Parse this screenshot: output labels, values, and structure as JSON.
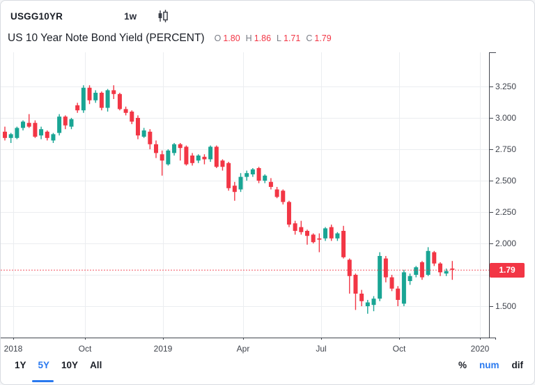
{
  "header": {
    "symbol": "USGG10YR",
    "interval": "1w",
    "chart_type_icon": "candlestick-icon",
    "title": "US 10 Year Note Bond Yield (PERCENT)",
    "ohlc": {
      "o_label": "O",
      "o": "1.80",
      "h_label": "H",
      "h": "1.86",
      "l_label": "L",
      "l": "1.71",
      "c_label": "C",
      "c": "1.79"
    }
  },
  "footer": {
    "ranges": [
      {
        "label": "1Y",
        "active": false
      },
      {
        "label": "5Y",
        "active": true
      },
      {
        "label": "10Y",
        "active": false
      },
      {
        "label": "All",
        "active": false
      }
    ],
    "modes": [
      {
        "label": "%",
        "active": false
      },
      {
        "label": "num",
        "active": true
      },
      {
        "label": "dif",
        "active": false
      }
    ]
  },
  "colors": {
    "up": "#19a594",
    "down": "#f23645",
    "accent_blue": "#2979ef",
    "grid": "#ebedf0",
    "axis": "#42464e",
    "price_line": "#f23645",
    "label_text": "#3f434c"
  },
  "chart_data": {
    "type": "candlestick",
    "series_name": "USGG10YR weekly",
    "ylabel": "PERCENT",
    "ylim": [
      1.25,
      3.52
    ],
    "grid": true,
    "y_ticks": [
      3.25,
      3.0,
      2.75,
      2.5,
      2.25,
      2.0,
      1.75,
      1.5
    ],
    "x_labels": [
      {
        "label": "2018",
        "week": 1.4
      },
      {
        "label": "Oct",
        "week": 13.2
      },
      {
        "label": "2019",
        "week": 26.2
      },
      {
        "label": "Apr",
        "week": 39.4
      },
      {
        "label": "Jul",
        "week": 52.3
      },
      {
        "label": "Oct",
        "week": 65.2
      },
      {
        "label": "2020",
        "week": 78.6
      }
    ],
    "current_price": 1.79,
    "current_price_label": "1.79",
    "candles_ohlc": [
      [
        2.89,
        2.93,
        2.82,
        2.84
      ],
      [
        2.84,
        2.88,
        2.8,
        2.87
      ],
      [
        2.84,
        2.93,
        2.83,
        2.92
      ],
      [
        2.92,
        2.98,
        2.9,
        2.97
      ],
      [
        2.96,
        3.03,
        2.92,
        2.93
      ],
      [
        2.96,
        2.98,
        2.84,
        2.85
      ],
      [
        2.86,
        2.93,
        2.83,
        2.91
      ],
      [
        2.89,
        2.9,
        2.82,
        2.84
      ],
      [
        2.82,
        2.88,
        2.8,
        2.87
      ],
      [
        2.88,
        3.03,
        2.86,
        3.01
      ],
      [
        3.01,
        3.02,
        2.91,
        2.94
      ],
      [
        2.93,
        3.0,
        2.91,
        2.99
      ],
      [
        3.1,
        3.12,
        3.04,
        3.06
      ],
      [
        3.06,
        3.26,
        3.04,
        3.24
      ],
      [
        3.24,
        3.26,
        3.11,
        3.14
      ],
      [
        3.14,
        3.22,
        3.12,
        3.2
      ],
      [
        3.2,
        3.21,
        3.06,
        3.08
      ],
      [
        3.08,
        3.23,
        3.05,
        3.22
      ],
      [
        3.22,
        3.26,
        3.15,
        3.19
      ],
      [
        3.19,
        3.2,
        3.06,
        3.07
      ],
      [
        3.07,
        3.09,
        3.02,
        3.04
      ],
      [
        3.05,
        3.06,
        2.95,
        2.97
      ],
      [
        3.0,
        3.02,
        2.83,
        2.86
      ],
      [
        2.85,
        2.92,
        2.84,
        2.9
      ],
      [
        2.89,
        2.91,
        2.75,
        2.79
      ],
      [
        2.79,
        2.82,
        2.68,
        2.72
      ],
      [
        2.71,
        2.74,
        2.54,
        2.66
      ],
      [
        2.63,
        2.75,
        2.62,
        2.74
      ],
      [
        2.72,
        2.8,
        2.7,
        2.79
      ],
      [
        2.79,
        2.8,
        2.66,
        2.76
      ],
      [
        2.77,
        2.78,
        2.62,
        2.63
      ],
      [
        2.7,
        2.72,
        2.62,
        2.64
      ],
      [
        2.66,
        2.71,
        2.64,
        2.7
      ],
      [
        2.69,
        2.71,
        2.63,
        2.67
      ],
      [
        2.67,
        2.78,
        2.65,
        2.77
      ],
      [
        2.77,
        2.78,
        2.6,
        2.61
      ],
      [
        2.66,
        2.67,
        2.58,
        2.61
      ],
      [
        2.64,
        2.65,
        2.42,
        2.44
      ],
      [
        2.46,
        2.49,
        2.34,
        2.41
      ],
      [
        2.43,
        2.56,
        2.41,
        2.53
      ],
      [
        2.53,
        2.58,
        2.5,
        2.56
      ],
      [
        2.55,
        2.6,
        2.53,
        2.59
      ],
      [
        2.6,
        2.61,
        2.48,
        2.5
      ],
      [
        2.5,
        2.55,
        2.48,
        2.54
      ],
      [
        2.49,
        2.52,
        2.43,
        2.45
      ],
      [
        2.43,
        2.45,
        2.36,
        2.37
      ],
      [
        2.42,
        2.43,
        2.31,
        2.33
      ],
      [
        2.33,
        2.34,
        2.13,
        2.15
      ],
      [
        2.16,
        2.18,
        2.07,
        2.1
      ],
      [
        2.13,
        2.18,
        2.07,
        2.09
      ],
      [
        2.1,
        2.11,
        1.99,
        2.06
      ],
      [
        2.07,
        2.08,
        2.0,
        2.01
      ],
      [
        2.04,
        2.08,
        1.93,
        2.03
      ],
      [
        2.04,
        2.13,
        2.02,
        2.12
      ],
      [
        2.13,
        2.15,
        2.02,
        2.04
      ],
      [
        2.04,
        2.09,
        2.02,
        2.08
      ],
      [
        2.1,
        2.14,
        1.88,
        1.89
      ],
      [
        1.87,
        1.88,
        1.6,
        1.74
      ],
      [
        1.75,
        1.76,
        1.47,
        1.6
      ],
      [
        1.6,
        1.63,
        1.5,
        1.54
      ],
      [
        1.5,
        1.55,
        1.44,
        1.53
      ],
      [
        1.51,
        1.58,
        1.46,
        1.56
      ],
      [
        1.56,
        1.93,
        1.54,
        1.9
      ],
      [
        1.88,
        1.9,
        1.69,
        1.73
      ],
      [
        1.73,
        1.75,
        1.62,
        1.64
      ],
      [
        1.64,
        1.66,
        1.5,
        1.55
      ],
      [
        1.52,
        1.79,
        1.5,
        1.77
      ],
      [
        1.7,
        1.76,
        1.67,
        1.74
      ],
      [
        1.75,
        1.82,
        1.73,
        1.81
      ],
      [
        1.85,
        1.86,
        1.71,
        1.73
      ],
      [
        1.75,
        1.97,
        1.74,
        1.94
      ],
      [
        1.93,
        1.94,
        1.82,
        1.84
      ],
      [
        1.84,
        1.85,
        1.74,
        1.77
      ],
      [
        1.76,
        1.8,
        1.74,
        1.78
      ],
      [
        1.8,
        1.86,
        1.71,
        1.79
      ]
    ]
  }
}
